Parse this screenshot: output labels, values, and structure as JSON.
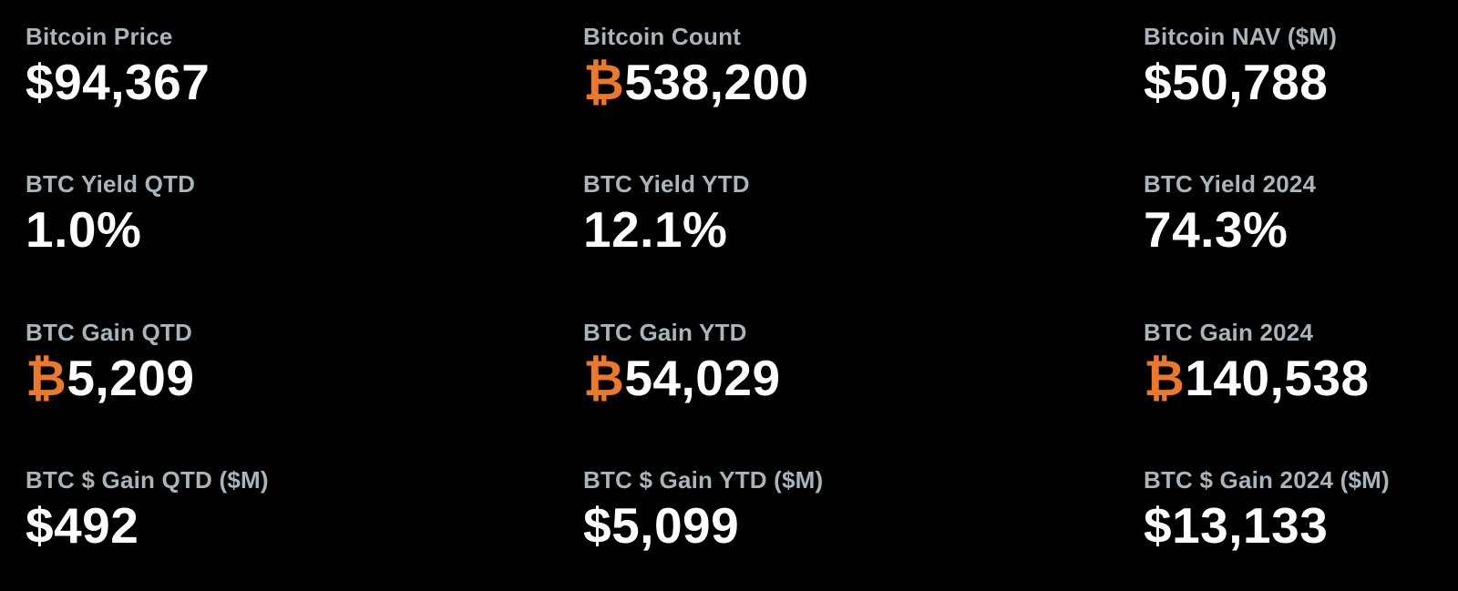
{
  "page": {
    "background": "#000000"
  },
  "colors": {
    "label_text": "#A9B4BB",
    "value_text": "#FFFFFF",
    "bitcoin_orange": "#E8792F"
  },
  "btc_symbol": "₿",
  "metrics": [
    {
      "id": "bitcoin-price",
      "label": "Bitcoin Price",
      "value": "$94,367",
      "btc_prefix": false
    },
    {
      "id": "bitcoin-count",
      "label": "Bitcoin Count",
      "value": "538,200",
      "btc_prefix": true
    },
    {
      "id": "bitcoin-nav",
      "label": "Bitcoin NAV ($M)",
      "value": "$50,788",
      "btc_prefix": false
    },
    {
      "id": "btc-yield-qtd",
      "label": "BTC Yield QTD",
      "value": "1.0%",
      "btc_prefix": false
    },
    {
      "id": "btc-yield-ytd",
      "label": "BTC Yield YTD",
      "value": "12.1%",
      "btc_prefix": false
    },
    {
      "id": "btc-yield-2024",
      "label": "BTC Yield 2024",
      "value": "74.3%",
      "btc_prefix": false
    },
    {
      "id": "btc-gain-qtd",
      "label": "BTC Gain QTD",
      "value": "5,209",
      "btc_prefix": true
    },
    {
      "id": "btc-gain-ytd",
      "label": "BTC Gain YTD",
      "value": "54,029",
      "btc_prefix": true
    },
    {
      "id": "btc-gain-2024",
      "label": "BTC Gain 2024",
      "value": "140,538",
      "btc_prefix": true
    },
    {
      "id": "btc-usd-gain-qtd",
      "label": "BTC $ Gain QTD ($M)",
      "value": "$492",
      "btc_prefix": false
    },
    {
      "id": "btc-usd-gain-ytd",
      "label": "BTC $ Gain YTD ($M)",
      "value": "$5,099",
      "btc_prefix": false
    },
    {
      "id": "btc-usd-gain-2024",
      "label": "BTC $ Gain 2024 ($M)",
      "value": "$13,133",
      "btc_prefix": false
    }
  ]
}
